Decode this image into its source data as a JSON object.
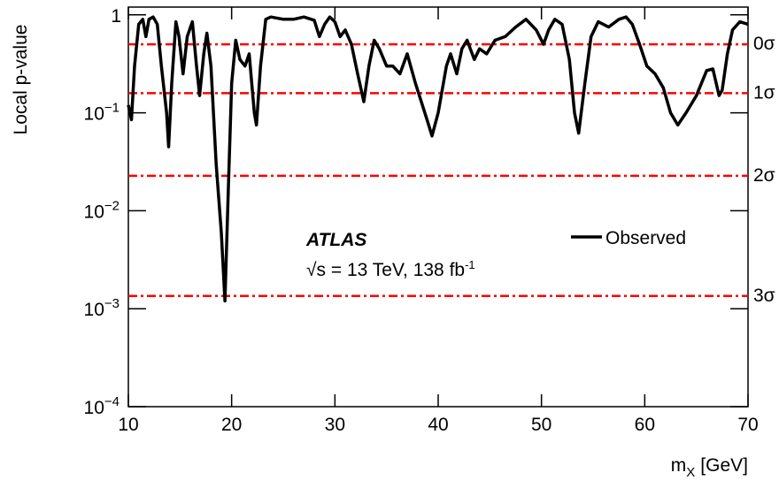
{
  "chart_data": {
    "type": "line",
    "y_label": "Local p-value",
    "x_label": "m",
    "x_label_sub": "X",
    "x_label_unit": "[GeV]",
    "experiment": "ATLAS",
    "energy_label": "√s = 13 TeV, 138 fb",
    "lumi_exponent": "-1",
    "log_y": true,
    "xlim": [
      10,
      70
    ],
    "xticks": [
      10,
      20,
      30,
      40,
      50,
      60,
      70
    ],
    "ylim": [
      0.0001,
      1.2
    ],
    "yticks": [
      {
        "value": 0.0001,
        "label": "10",
        "exponent": "−4"
      },
      {
        "value": 0.001,
        "label": "10",
        "exponent": "−3"
      },
      {
        "value": 0.01,
        "label": "10",
        "exponent": "−2"
      },
      {
        "value": 0.1,
        "label": "10",
        "exponent": "−1"
      },
      1
    ],
    "sigma_lines": [
      {
        "value": 0.5,
        "label": "0σ"
      },
      {
        "value": 0.1587,
        "label": "1σ"
      },
      {
        "value": 0.02275,
        "label": "2σ"
      },
      {
        "value": 0.00135,
        "label": "3σ"
      }
    ],
    "sigma_color": "#ff0000",
    "x": [
      10.0,
      10.3,
      10.6,
      11.0,
      11.4,
      11.7,
      12.0,
      12.4,
      12.8,
      13.2,
      13.7,
      13.9,
      14.2,
      14.6,
      14.9,
      15.3,
      15.7,
      16.2,
      16.6,
      16.9,
      17.3,
      17.6,
      18.0,
      18.5,
      19.0,
      19.35,
      19.7,
      20.0,
      20.4,
      20.8,
      21.3,
      21.7,
      22.2,
      22.4,
      22.8,
      23.3,
      23.8,
      25,
      26,
      27,
      28,
      28.5,
      29,
      29.5,
      30,
      30.5,
      31,
      31.6,
      32.2,
      32.8,
      33.3,
      33.8,
      34.3,
      35,
      35.6,
      36.3,
      37,
      37.8,
      39.0,
      39.4,
      40,
      40.8,
      41.2,
      41.8,
      42.3,
      42.8,
      43.5,
      44,
      44.7,
      45.5,
      46.5,
      47.5,
      48.5,
      49.5,
      50.2,
      50.7,
      51.3,
      52,
      52.7,
      53.2,
      53.6,
      54.2,
      54.8,
      55.5,
      56.5,
      57.5,
      58.2,
      58.8,
      59.5,
      60.2,
      61,
      61.8,
      62.5,
      63.2,
      64,
      65,
      66,
      66.6,
      67.2,
      67.5,
      68,
      68.5,
      69.2,
      70
    ],
    "series": [
      {
        "name": "Observed",
        "color": "#000000",
        "values": [
          0.12,
          0.085,
          0.3,
          0.8,
          0.9,
          0.6,
          0.9,
          0.95,
          0.8,
          0.3,
          0.1,
          0.045,
          0.2,
          0.85,
          0.6,
          0.25,
          0.6,
          0.85,
          0.3,
          0.15,
          0.4,
          0.65,
          0.3,
          0.03,
          0.006,
          0.0012,
          0.02,
          0.2,
          0.55,
          0.35,
          0.3,
          0.4,
          0.1,
          0.075,
          0.3,
          0.9,
          0.95,
          0.9,
          0.9,
          0.95,
          0.88,
          0.6,
          0.8,
          0.95,
          0.85,
          0.6,
          0.7,
          0.5,
          0.25,
          0.13,
          0.3,
          0.55,
          0.45,
          0.3,
          0.3,
          0.25,
          0.4,
          0.2,
          0.08,
          0.058,
          0.1,
          0.3,
          0.4,
          0.25,
          0.45,
          0.55,
          0.35,
          0.45,
          0.4,
          0.55,
          0.6,
          0.75,
          0.9,
          0.7,
          0.5,
          0.7,
          0.9,
          0.8,
          0.35,
          0.1,
          0.062,
          0.2,
          0.6,
          0.85,
          0.75,
          0.9,
          0.95,
          0.8,
          0.5,
          0.3,
          0.25,
          0.18,
          0.1,
          0.075,
          0.1,
          0.15,
          0.27,
          0.28,
          0.15,
          0.17,
          0.4,
          0.7,
          0.85,
          0.8
        ]
      }
    ]
  }
}
